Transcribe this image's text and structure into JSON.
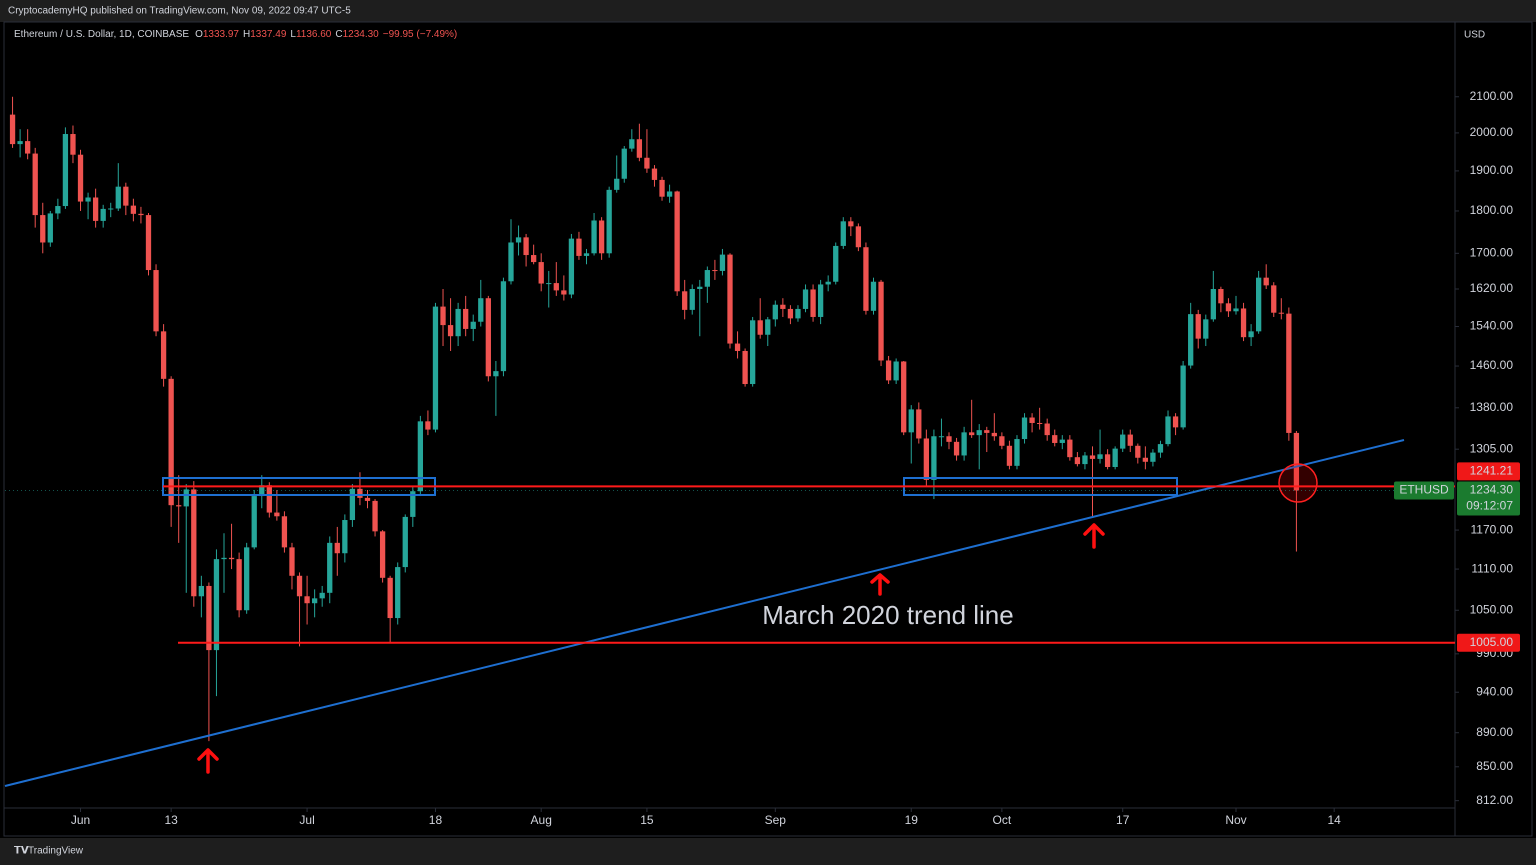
{
  "header": {
    "publisher": "CryptocademyHQ published on TradingView.com, Nov 09, 2022 09:47 UTC-5",
    "footer": "TradingView"
  },
  "chart_data": {
    "type": "candlestick",
    "title": "Ethereum / U.S. Dollar, 1D, COINBASE",
    "ohlc": [
      {
        "key": "O",
        "value": "1333.97"
      },
      {
        "key": "H",
        "value": "1337.49"
      },
      {
        "key": "L",
        "value": "1136.60"
      },
      {
        "key": "C",
        "value": "1234.30"
      }
    ],
    "change": "−99.95 (−7.49%)",
    "y_axis_label": "USD",
    "log_scale": true,
    "grid": false,
    "up_color": "#26a69a",
    "down_color": "#ef5350",
    "xlim": [
      -1,
      191
    ],
    "ylim": [
      804,
      2323
    ],
    "xticks": [
      {
        "value": 9,
        "label": "Jun"
      },
      {
        "value": 21,
        "label": "13"
      },
      {
        "value": 39,
        "label": "Jul"
      },
      {
        "value": 56,
        "label": "18"
      },
      {
        "value": 70,
        "label": "Aug"
      },
      {
        "value": 84,
        "label": "15"
      },
      {
        "value": 101,
        "label": "Sep"
      },
      {
        "value": 119,
        "label": "19"
      },
      {
        "value": 131,
        "label": "Oct"
      },
      {
        "value": 147,
        "label": "17"
      },
      {
        "value": 162,
        "label": "Nov"
      },
      {
        "value": 175,
        "label": "14"
      }
    ],
    "yticks": [
      {
        "value": 2100,
        "label": "2100.00"
      },
      {
        "value": 2000,
        "label": "2000.00"
      },
      {
        "value": 1900,
        "label": "1900.00"
      },
      {
        "value": 1800,
        "label": "1800.00"
      },
      {
        "value": 1700,
        "label": "1700.00"
      },
      {
        "value": 1620,
        "label": "1620.00"
      },
      {
        "value": 1540,
        "label": "1540.00"
      },
      {
        "value": 1460,
        "label": "1460.00"
      },
      {
        "value": 1380,
        "label": "1380.00"
      },
      {
        "value": 1305,
        "label": "1305.00"
      },
      {
        "value": 1170,
        "label": "1170.00"
      },
      {
        "value": 1110,
        "label": "1110.00"
      },
      {
        "value": 1050,
        "label": "1050.00"
      },
      {
        "value": 990,
        "label": "990.00"
      },
      {
        "value": 940,
        "label": "940.00"
      },
      {
        "value": 890,
        "label": "890.00"
      },
      {
        "value": 850,
        "label": "850.00"
      },
      {
        "value": 812,
        "label": "812.00"
      }
    ],
    "levels": [
      {
        "value": 1241.21,
        "label": "1241.21"
      },
      {
        "value": 1005,
        "label": "1005.00"
      }
    ],
    "last_price": {
      "symbol": "ETHUSD",
      "label": "1234.30",
      "countdown": "09:12:07"
    },
    "annotation": "March 2020 trend line",
    "candles": [
      [
        2050,
        2100,
        1960,
        1970
      ],
      [
        1970,
        2010,
        1935,
        1978
      ],
      [
        1978,
        2010,
        1930,
        1945
      ],
      [
        1945,
        1960,
        1760,
        1790
      ],
      [
        1790,
        1820,
        1700,
        1725
      ],
      [
        1725,
        1800,
        1715,
        1794
      ],
      [
        1794,
        1830,
        1780,
        1812
      ],
      [
        1812,
        2015,
        1805,
        1997
      ],
      [
        1997,
        2020,
        1920,
        1942
      ],
      [
        1942,
        1955,
        1800,
        1823
      ],
      [
        1823,
        1845,
        1780,
        1833
      ],
      [
        1833,
        1855,
        1760,
        1776
      ],
      [
        1776,
        1815,
        1760,
        1805
      ],
      [
        1805,
        1820,
        1785,
        1806
      ],
      [
        1806,
        1920,
        1800,
        1860
      ],
      [
        1860,
        1870,
        1790,
        1813
      ],
      [
        1813,
        1830,
        1775,
        1793
      ],
      [
        1793,
        1810,
        1770,
        1790
      ],
      [
        1790,
        1795,
        1650,
        1662
      ],
      [
        1662,
        1675,
        1520,
        1530
      ],
      [
        1530,
        1545,
        1420,
        1435
      ],
      [
        1435,
        1440,
        1175,
        1210
      ],
      [
        1210,
        1260,
        1150,
        1208
      ],
      [
        1208,
        1245,
        1075,
        1236
      ],
      [
        1236,
        1250,
        1055,
        1070
      ],
      [
        1070,
        1100,
        1040,
        1085
      ],
      [
        1085,
        1090,
        880,
        995
      ],
      [
        995,
        1140,
        935,
        1125
      ],
      [
        1125,
        1165,
        1075,
        1127
      ],
      [
        1127,
        1180,
        1110,
        1125
      ],
      [
        1125,
        1135,
        1040,
        1050
      ],
      [
        1050,
        1150,
        1045,
        1143
      ],
      [
        1143,
        1235,
        1140,
        1225
      ],
      [
        1225,
        1260,
        1205,
        1243
      ],
      [
        1243,
        1248,
        1190,
        1198
      ],
      [
        1198,
        1235,
        1185,
        1192
      ],
      [
        1192,
        1200,
        1135,
        1143
      ],
      [
        1143,
        1150,
        1080,
        1100
      ],
      [
        1100,
        1105,
        1000,
        1070
      ],
      [
        1070,
        1100,
        1030,
        1060
      ],
      [
        1060,
        1080,
        1040,
        1067
      ],
      [
        1067,
        1085,
        1055,
        1075
      ],
      [
        1075,
        1160,
        1060,
        1150
      ],
      [
        1150,
        1175,
        1100,
        1134
      ],
      [
        1134,
        1195,
        1120,
        1186
      ],
      [
        1186,
        1245,
        1175,
        1237
      ],
      [
        1237,
        1265,
        1210,
        1222
      ],
      [
        1222,
        1235,
        1205,
        1217
      ],
      [
        1217,
        1220,
        1160,
        1168
      ],
      [
        1168,
        1170,
        1090,
        1097
      ],
      [
        1097,
        1100,
        1005,
        1039
      ],
      [
        1039,
        1120,
        1030,
        1113
      ],
      [
        1113,
        1195,
        1105,
        1191
      ],
      [
        1191,
        1240,
        1175,
        1233
      ],
      [
        1233,
        1365,
        1225,
        1355
      ],
      [
        1355,
        1375,
        1330,
        1340
      ],
      [
        1340,
        1590,
        1335,
        1582
      ],
      [
        1582,
        1620,
        1500,
        1543
      ],
      [
        1543,
        1600,
        1490,
        1520
      ],
      [
        1520,
        1590,
        1500,
        1577
      ],
      [
        1577,
        1605,
        1520,
        1535
      ],
      [
        1535,
        1565,
        1510,
        1550
      ],
      [
        1550,
        1640,
        1540,
        1600
      ],
      [
        1600,
        1605,
        1430,
        1440
      ],
      [
        1440,
        1470,
        1365,
        1450
      ],
      [
        1450,
        1645,
        1440,
        1637
      ],
      [
        1637,
        1780,
        1630,
        1725
      ],
      [
        1725,
        1765,
        1695,
        1737
      ],
      [
        1737,
        1745,
        1670,
        1696
      ],
      [
        1696,
        1720,
        1675,
        1680
      ],
      [
        1680,
        1700,
        1615,
        1632
      ],
      [
        1632,
        1660,
        1580,
        1633
      ],
      [
        1633,
        1680,
        1605,
        1617
      ],
      [
        1617,
        1650,
        1595,
        1608
      ],
      [
        1608,
        1745,
        1600,
        1734
      ],
      [
        1734,
        1750,
        1685,
        1694
      ],
      [
        1694,
        1710,
        1675,
        1700
      ],
      [
        1700,
        1795,
        1695,
        1777
      ],
      [
        1777,
        1785,
        1685,
        1700
      ],
      [
        1700,
        1860,
        1690,
        1852
      ],
      [
        1852,
        1940,
        1845,
        1880
      ],
      [
        1880,
        1965,
        1870,
        1958
      ],
      [
        1958,
        2010,
        1950,
        1983
      ],
      [
        1983,
        2025,
        1925,
        1934
      ],
      [
        1934,
        2010,
        1895,
        1906
      ],
      [
        1906,
        1915,
        1860,
        1877
      ],
      [
        1877,
        1885,
        1825,
        1835
      ],
      [
        1835,
        1865,
        1820,
        1848
      ],
      [
        1848,
        1850,
        1605,
        1615
      ],
      [
        1615,
        1640,
        1555,
        1575
      ],
      [
        1575,
        1630,
        1565,
        1620
      ],
      [
        1620,
        1640,
        1520,
        1625
      ],
      [
        1625,
        1670,
        1590,
        1662
      ],
      [
        1662,
        1685,
        1640,
        1660
      ],
      [
        1660,
        1710,
        1650,
        1697
      ],
      [
        1697,
        1700,
        1495,
        1505
      ],
      [
        1505,
        1530,
        1475,
        1490
      ],
      [
        1490,
        1495,
        1420,
        1425
      ],
      [
        1425,
        1560,
        1420,
        1553
      ],
      [
        1553,
        1600,
        1515,
        1523
      ],
      [
        1523,
        1560,
        1500,
        1555
      ],
      [
        1555,
        1595,
        1540,
        1586
      ],
      [
        1586,
        1600,
        1560,
        1577
      ],
      [
        1577,
        1585,
        1545,
        1557
      ],
      [
        1557,
        1585,
        1550,
        1577
      ],
      [
        1577,
        1630,
        1570,
        1619
      ],
      [
        1619,
        1630,
        1550,
        1560
      ],
      [
        1560,
        1640,
        1545,
        1630
      ],
      [
        1630,
        1650,
        1615,
        1636
      ],
      [
        1636,
        1725,
        1630,
        1717
      ],
      [
        1717,
        1785,
        1710,
        1775
      ],
      [
        1775,
        1785,
        1740,
        1763
      ],
      [
        1763,
        1770,
        1705,
        1714
      ],
      [
        1714,
        1725,
        1565,
        1573
      ],
      [
        1573,
        1645,
        1565,
        1636
      ],
      [
        1636,
        1640,
        1460,
        1471
      ],
      [
        1471,
        1480,
        1425,
        1432
      ],
      [
        1432,
        1475,
        1425,
        1469
      ],
      [
        1469,
        1470,
        1330,
        1335
      ],
      [
        1335,
        1385,
        1280,
        1377
      ],
      [
        1377,
        1390,
        1315,
        1324
      ],
      [
        1324,
        1340,
        1240,
        1252
      ],
      [
        1252,
        1340,
        1220,
        1328
      ],
      [
        1328,
        1360,
        1310,
        1328
      ],
      [
        1328,
        1335,
        1305,
        1318
      ],
      [
        1318,
        1325,
        1285,
        1294
      ],
      [
        1294,
        1345,
        1285,
        1335
      ],
      [
        1335,
        1395,
        1325,
        1330
      ],
      [
        1330,
        1350,
        1270,
        1339
      ],
      [
        1339,
        1345,
        1300,
        1334
      ],
      [
        1334,
        1370,
        1320,
        1328
      ],
      [
        1328,
        1335,
        1305,
        1311
      ],
      [
        1311,
        1320,
        1270,
        1276
      ],
      [
        1276,
        1330,
        1270,
        1323
      ],
      [
        1323,
        1370,
        1315,
        1362
      ],
      [
        1362,
        1370,
        1335,
        1352
      ],
      [
        1352,
        1380,
        1340,
        1351
      ],
      [
        1351,
        1360,
        1320,
        1330
      ],
      [
        1330,
        1340,
        1310,
        1316
      ],
      [
        1316,
        1330,
        1305,
        1322
      ],
      [
        1322,
        1330,
        1285,
        1291
      ],
      [
        1291,
        1300,
        1275,
        1279
      ],
      [
        1279,
        1300,
        1270,
        1294
      ],
      [
        1294,
        1310,
        1190,
        1288
      ],
      [
        1288,
        1340,
        1280,
        1296
      ],
      [
        1296,
        1305,
        1270,
        1274
      ],
      [
        1274,
        1310,
        1270,
        1306
      ],
      [
        1306,
        1340,
        1300,
        1331
      ],
      [
        1331,
        1340,
        1300,
        1311
      ],
      [
        1311,
        1315,
        1280,
        1290
      ],
      [
        1290,
        1310,
        1270,
        1283
      ],
      [
        1283,
        1305,
        1275,
        1299
      ],
      [
        1299,
        1320,
        1290,
        1314
      ],
      [
        1314,
        1375,
        1310,
        1364
      ],
      [
        1364,
        1370,
        1330,
        1344
      ],
      [
        1344,
        1470,
        1340,
        1461
      ],
      [
        1461,
        1590,
        1455,
        1566
      ],
      [
        1566,
        1575,
        1495,
        1515
      ],
      [
        1515,
        1565,
        1500,
        1555
      ],
      [
        1555,
        1660,
        1550,
        1620
      ],
      [
        1620,
        1625,
        1570,
        1589
      ],
      [
        1589,
        1600,
        1560,
        1572
      ],
      [
        1572,
        1605,
        1565,
        1578
      ],
      [
        1578,
        1590,
        1510,
        1518
      ],
      [
        1518,
        1545,
        1500,
        1530
      ],
      [
        1530,
        1660,
        1525,
        1645
      ],
      [
        1645,
        1675,
        1620,
        1628
      ],
      [
        1628,
        1635,
        1560,
        1569
      ],
      [
        1569,
        1600,
        1555,
        1567
      ],
      [
        1567,
        1580,
        1320,
        1333.97
      ],
      [
        1333.97,
        1337.49,
        1136.6,
        1234.3
      ]
    ]
  }
}
